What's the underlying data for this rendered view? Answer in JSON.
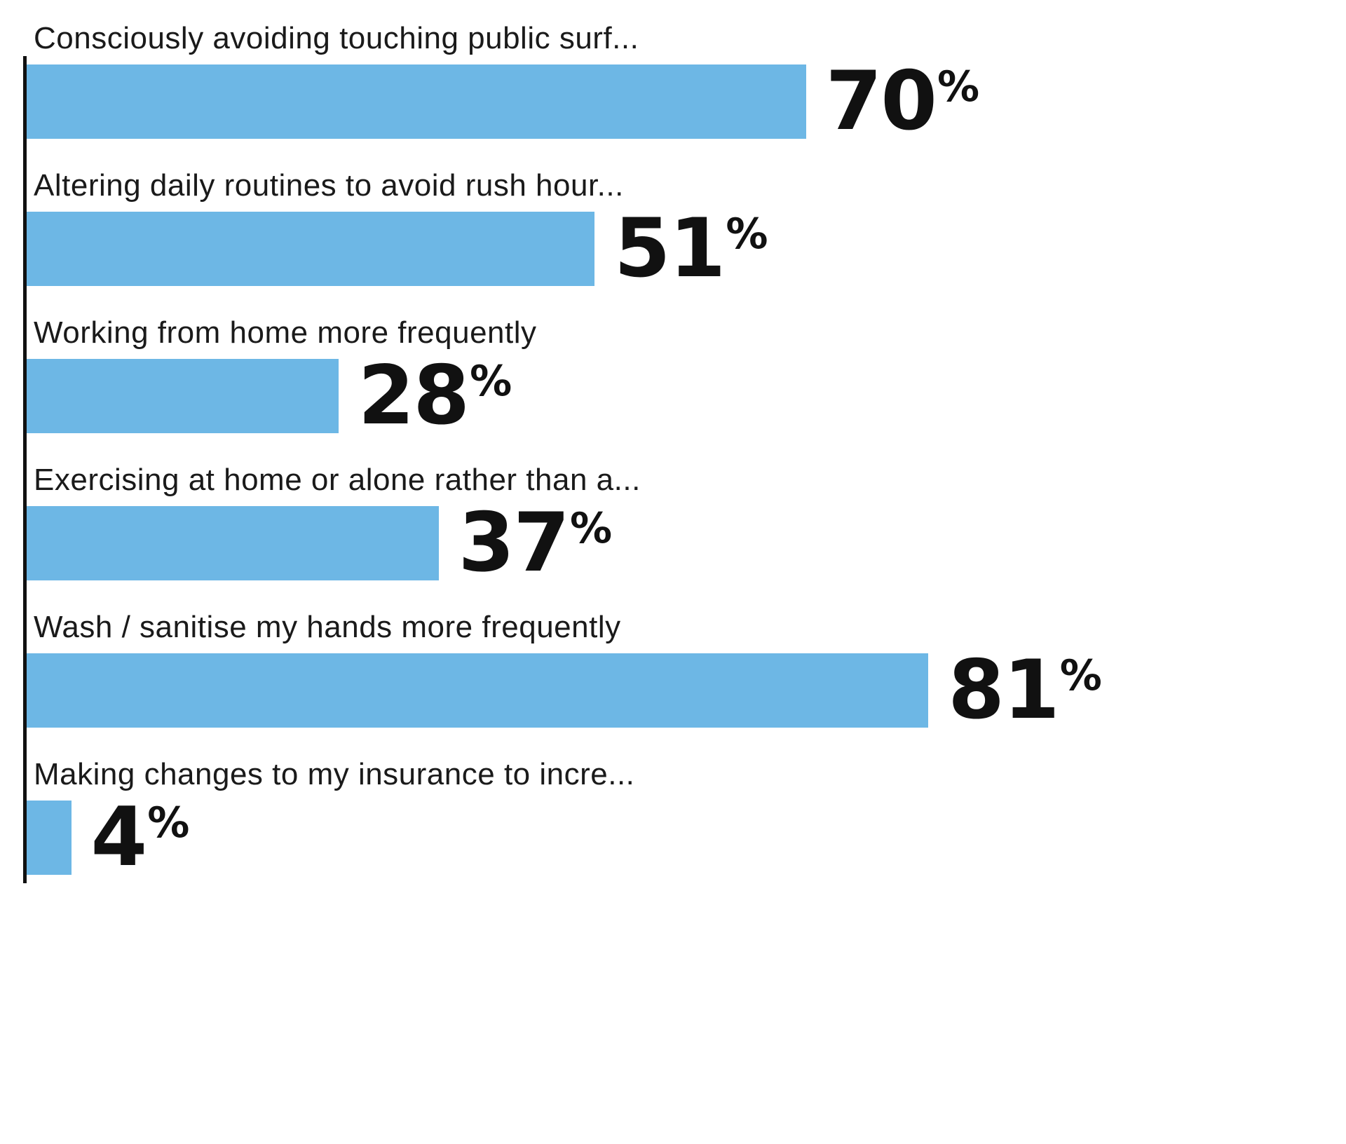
{
  "chart_data": {
    "type": "bar",
    "orientation": "horizontal",
    "title": "",
    "categories": [
      "Consciously avoiding touching public surf...",
      "Altering daily routines to avoid rush hour...",
      "Working from home more frequently",
      "Exercising at home or alone rather than a...",
      "Wash / sanitise my hands more frequently",
      "Making changes to my insurance to incre..."
    ],
    "values": [
      70,
      51,
      28,
      37,
      81,
      4
    ],
    "value_suffix": "%",
    "xlim": [
      0,
      100
    ],
    "bar_color": "#6db7e5",
    "axis_color": "#111111",
    "label_color": "#1a1a1a",
    "value_color": "#111111",
    "background": "#ffffff",
    "grid": false,
    "legend": false
  }
}
